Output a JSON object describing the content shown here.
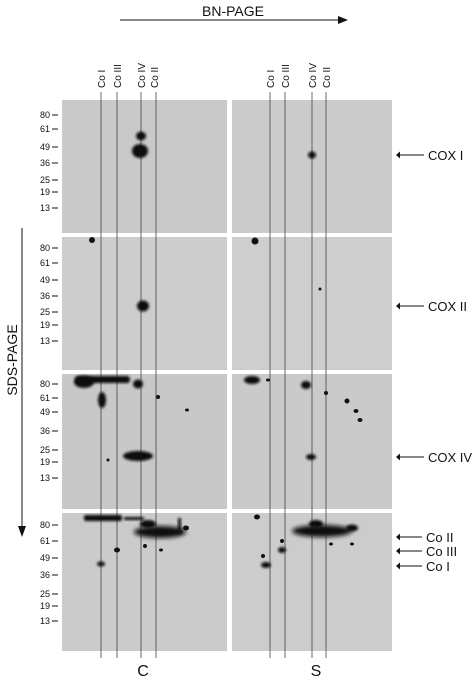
{
  "figure": {
    "top_axis_label": "BN-PAGE",
    "left_axis_label": "SDS-PAGE",
    "column_labels": [
      "Co I",
      "Co III",
      "Co IV",
      "Co II"
    ],
    "marker_ticks": [
      "80",
      "61",
      "49",
      "36",
      "25",
      "19",
      "13"
    ],
    "gel_labels": [
      "C",
      "S"
    ],
    "protein_labels": {
      "row1": [
        "COX I"
      ],
      "row2": [
        "COX II"
      ],
      "row3": [
        "COX IV"
      ],
      "row4": [
        "Co II",
        "Co III",
        "Co I"
      ]
    }
  }
}
